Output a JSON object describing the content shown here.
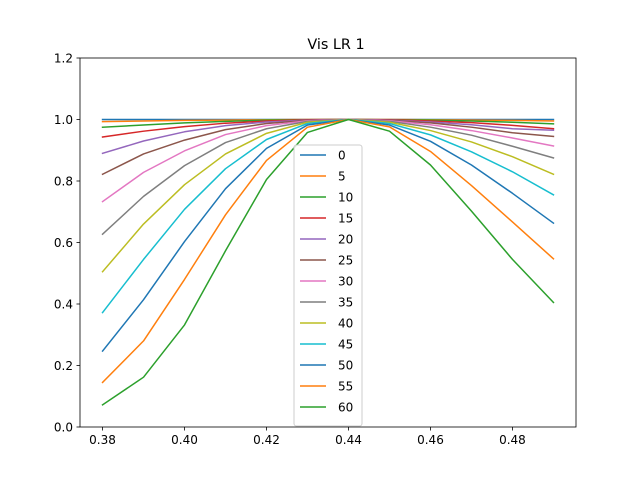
{
  "chart_data": {
    "type": "line",
    "title": "Vis LR 1",
    "xlabel": "",
    "ylabel": "",
    "xlim": [
      0.3745,
      0.4955
    ],
    "ylim": [
      0.0,
      1.2
    ],
    "x_ticks": [
      "0.38",
      "0.40",
      "0.42",
      "0.44",
      "0.46",
      "0.48"
    ],
    "x_tick_values": [
      0.38,
      0.4,
      0.42,
      0.44,
      0.46,
      0.48
    ],
    "y_ticks": [
      "0.0",
      "0.2",
      "0.4",
      "0.6",
      "0.8",
      "1.0",
      "1.2"
    ],
    "y_tick_values": [
      0.0,
      0.2,
      0.4,
      0.6,
      0.8,
      1.0,
      1.2
    ],
    "grid": false,
    "legend_position": "center",
    "x": [
      0.38,
      0.39,
      0.4,
      0.41,
      0.42,
      0.43,
      0.44,
      0.45,
      0.46,
      0.47,
      0.48,
      0.49
    ],
    "series": [
      {
        "name": "0",
        "color": "#1f77b4",
        "values": [
          1.0,
          1.0,
          1.0,
          1.0,
          1.0,
          1.0,
          1.0,
          1.0,
          1.0,
          1.0,
          1.0,
          1.0
        ]
      },
      {
        "name": "5",
        "color": "#ff7f0e",
        "values": [
          0.993,
          0.995,
          0.997,
          0.998,
          0.999,
          1.0,
          1.0,
          1.0,
          0.999,
          0.998,
          0.997,
          0.995
        ]
      },
      {
        "name": "10",
        "color": "#2ca02c",
        "values": [
          0.975,
          0.982,
          0.989,
          0.994,
          0.998,
          0.999,
          1.0,
          0.999,
          0.998,
          0.995,
          0.991,
          0.986
        ]
      },
      {
        "name": "15",
        "color": "#d62728",
        "values": [
          0.943,
          0.962,
          0.977,
          0.988,
          0.995,
          0.999,
          1.0,
          0.999,
          0.995,
          0.99,
          0.981,
          0.97
        ]
      },
      {
        "name": "20",
        "color": "#9467bd",
        "values": [
          0.89,
          0.93,
          0.96,
          0.98,
          0.992,
          0.998,
          1.0,
          0.998,
          0.992,
          0.983,
          0.97,
          0.965
        ]
      },
      {
        "name": "25",
        "color": "#8c564b",
        "values": [
          0.822,
          0.888,
          0.933,
          0.967,
          0.987,
          0.997,
          1.0,
          0.997,
          0.989,
          0.975,
          0.957,
          0.945
        ]
      },
      {
        "name": "30",
        "color": "#e377c2",
        "values": [
          0.733,
          0.828,
          0.898,
          0.951,
          0.98,
          0.996,
          1.0,
          0.996,
          0.983,
          0.964,
          0.94,
          0.914
        ]
      },
      {
        "name": "35",
        "color": "#7f7f7f",
        "values": [
          0.627,
          0.75,
          0.85,
          0.925,
          0.97,
          0.994,
          1.0,
          0.994,
          0.975,
          0.949,
          0.913,
          0.875
        ]
      },
      {
        "name": "40",
        "color": "#bcbd22",
        "values": [
          0.505,
          0.66,
          0.788,
          0.888,
          0.955,
          0.991,
          1.0,
          0.991,
          0.964,
          0.927,
          0.879,
          0.822
        ]
      },
      {
        "name": "45",
        "color": "#17becf",
        "values": [
          0.372,
          0.545,
          0.708,
          0.84,
          0.935,
          0.987,
          1.0,
          0.987,
          0.95,
          0.895,
          0.83,
          0.755
        ]
      },
      {
        "name": "50",
        "color": "#1f77b4",
        "values": [
          0.247,
          0.414,
          0.603,
          0.775,
          0.906,
          0.982,
          1.0,
          0.982,
          0.929,
          0.852,
          0.76,
          0.663
        ]
      },
      {
        "name": "55",
        "color": "#ff7f0e",
        "values": [
          0.145,
          0.28,
          0.48,
          0.69,
          0.867,
          0.975,
          1.0,
          0.976,
          0.896,
          0.785,
          0.667,
          0.547
        ]
      },
      {
        "name": "60",
        "color": "#2ca02c",
        "values": [
          0.072,
          0.162,
          0.332,
          0.573,
          0.805,
          0.958,
          1.0,
          0.962,
          0.852,
          0.702,
          0.545,
          0.405
        ]
      }
    ]
  }
}
